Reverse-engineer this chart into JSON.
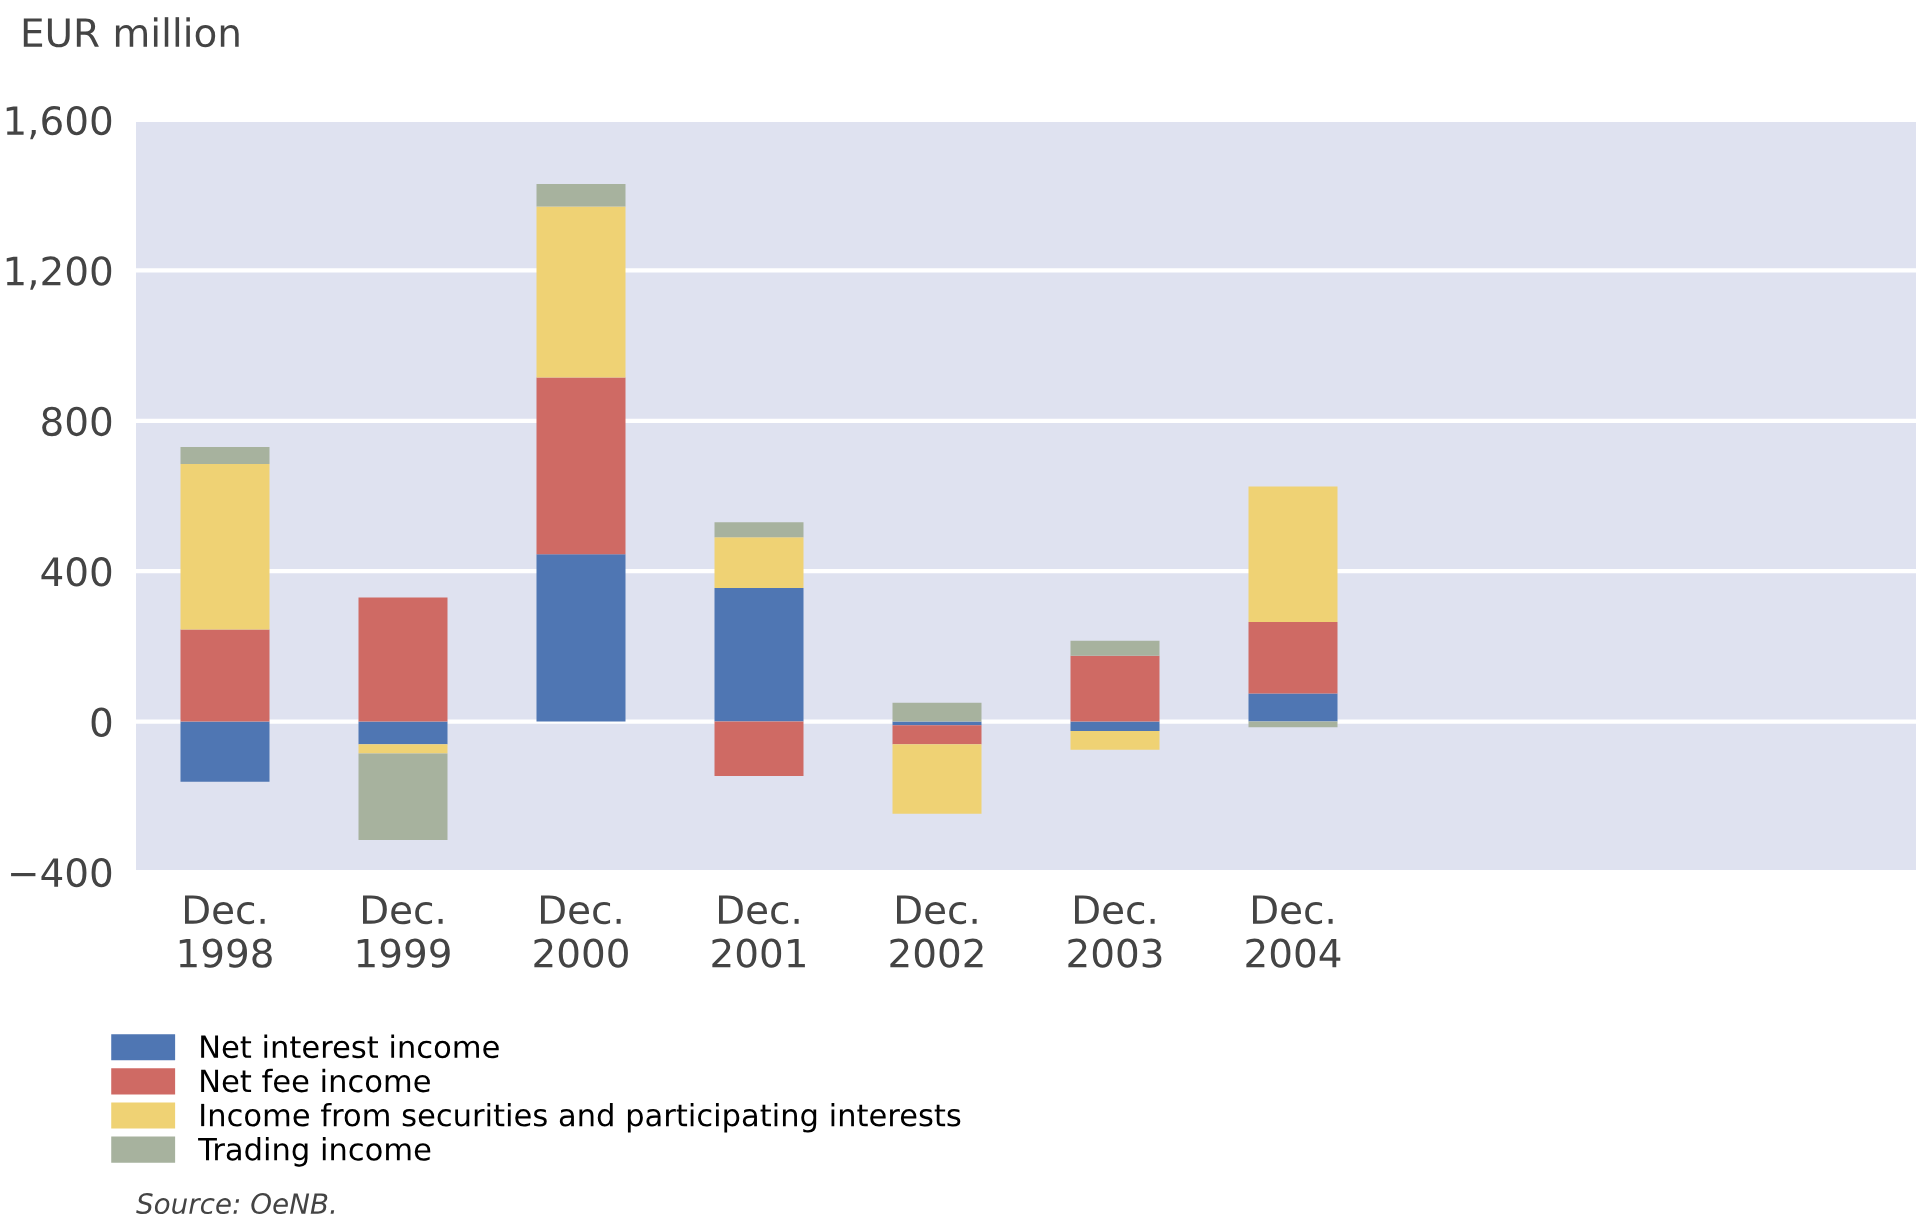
{
  "chart_data": {
    "type": "bar",
    "stacked": true,
    "ylabel": "EUR million",
    "categories": [
      "Dec.\n1998",
      "Dec.\n1999",
      "Dec.\n2000",
      "Dec.\n2001",
      "Dec.\n2002",
      "Dec.\n2003",
      "Dec.\n2004",
      null,
      null,
      null
    ],
    "series": [
      {
        "name": "Net interest income",
        "color": "#4f76b3",
        "values": [
          -160,
          -60,
          445,
          355,
          -10,
          -25,
          75,
          null,
          null,
          null
        ]
      },
      {
        "name": "Net fee income",
        "color": "#cf6a64",
        "values": [
          245,
          330,
          470,
          -145,
          -50,
          175,
          190,
          null,
          null,
          null
        ]
      },
      {
        "name": "Income from securities and participating interests",
        "color": "#efd274",
        "values": [
          440,
          -25,
          455,
          135,
          -185,
          -50,
          360,
          null,
          null,
          null
        ]
      },
      {
        "name": "Trading income",
        "color": "#a7b29e",
        "values": [
          45,
          -230,
          60,
          40,
          50,
          40,
          -15,
          null,
          null,
          null
        ]
      }
    ],
    "ylim": [
      -400,
      1600
    ],
    "yticks": [
      {
        "value": -400,
        "label": "−400"
      },
      0,
      {
        "value": 400,
        "label": "400"
      },
      {
        "value": 800,
        "label": "800"
      },
      {
        "value": 1200,
        "label": "1,200"
      },
      {
        "value": 1600,
        "label": "1,600"
      }
    ],
    "grid": "y",
    "legend": "bottom",
    "annotations": [
      "Source: OeNB."
    ]
  }
}
